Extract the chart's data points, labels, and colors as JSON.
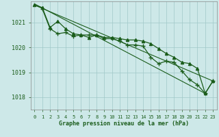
{
  "title": "Graphe pression niveau de la mer (hPa)",
  "background_color": "#cde8e8",
  "plot_bg_color": "#cde8e8",
  "grid_color": "#a0c8c8",
  "line_color": "#1a5c1a",
  "text_color": "#1a5c1a",
  "xlim": [
    -0.5,
    23.5
  ],
  "ylim": [
    1017.5,
    1021.85
  ],
  "yticks": [
    1018,
    1019,
    1020,
    1021
  ],
  "xticks": [
    0,
    1,
    2,
    3,
    4,
    5,
    6,
    7,
    8,
    9,
    10,
    11,
    12,
    13,
    14,
    15,
    16,
    17,
    18,
    19,
    20,
    21,
    22,
    23
  ],
  "series1_x": [
    1,
    2,
    3,
    4,
    5,
    6,
    7,
    8,
    9,
    10,
    11,
    12,
    13,
    14,
    15,
    16,
    17,
    18,
    19,
    20,
    21,
    22,
    23
  ],
  "series1_y": [
    1021.55,
    1020.75,
    1020.55,
    1020.6,
    1020.45,
    1020.5,
    1020.5,
    1020.5,
    1020.35,
    1020.35,
    1020.25,
    1020.1,
    1020.1,
    1020.05,
    1019.6,
    1019.35,
    1019.45,
    1019.4,
    1019.05,
    1018.7,
    1018.5,
    1018.15,
    1018.65
  ],
  "series2_x": [
    0,
    1,
    2,
    3,
    4,
    5,
    6,
    7,
    8,
    9,
    10,
    11,
    12,
    13,
    14,
    15,
    16,
    17,
    18,
    19,
    20,
    21,
    22,
    23
  ],
  "series2_y": [
    1021.7,
    1021.6,
    1020.8,
    1021.05,
    1020.75,
    1020.55,
    1020.5,
    1020.4,
    1020.5,
    1020.4,
    1020.4,
    1020.35,
    1020.3,
    1020.3,
    1020.25,
    1020.15,
    1019.95,
    1019.75,
    1019.6,
    1019.4,
    1019.35,
    1019.15,
    1018.15,
    1018.65
  ],
  "series3": [
    [
      0,
      1021.7
    ],
    [
      23,
      1018.65
    ]
  ],
  "series4": [
    [
      0,
      1021.75
    ],
    [
      22,
      1018.15
    ]
  ]
}
